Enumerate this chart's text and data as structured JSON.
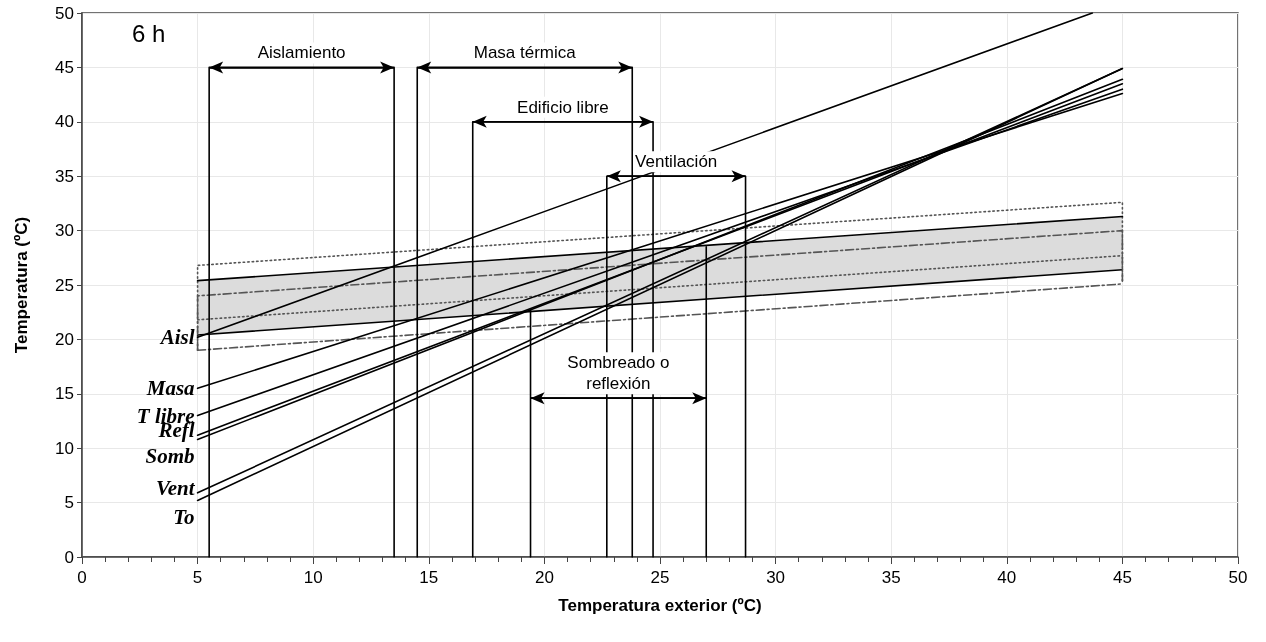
{
  "chart_data": {
    "type": "line",
    "xlabel": "Temperatura exterior (ºC)",
    "ylabel": "Temperatura (ºC)",
    "xlim": [
      0,
      50
    ],
    "xticks": [
      0,
      {
        "value": 1,
        "label": null
      },
      {
        "value": 2,
        "label": null
      },
      {
        "value": 3,
        "label": null
      },
      {
        "value": 4,
        "label": null
      },
      5,
      {
        "value": 6,
        "label": null
      },
      {
        "value": 7,
        "label": null
      },
      {
        "value": 8,
        "label": null
      },
      {
        "value": 9,
        "label": null
      },
      10,
      {
        "value": 11,
        "label": null
      },
      {
        "value": 12,
        "label": null
      },
      {
        "value": 13,
        "label": null
      },
      {
        "value": 14,
        "label": null
      },
      15,
      {
        "value": 16,
        "label": null
      },
      {
        "value": 17,
        "label": null
      },
      {
        "value": 18,
        "label": null
      },
      {
        "value": 19,
        "label": null
      },
      20,
      {
        "value": 21,
        "label": null
      },
      {
        "value": 22,
        "label": null
      },
      {
        "value": 23,
        "label": null
      },
      {
        "value": 24,
        "label": null
      },
      25,
      {
        "value": 26,
        "label": null
      },
      {
        "value": 27,
        "label": null
      },
      {
        "value": 28,
        "label": null
      },
      {
        "value": 29,
        "label": null
      },
      30,
      {
        "value": 31,
        "label": null
      },
      {
        "value": 32,
        "label": null
      },
      {
        "value": 33,
        "label": null
      },
      {
        "value": 34,
        "label": null
      },
      35,
      {
        "value": 36,
        "label": null
      },
      {
        "value": 37,
        "label": null
      },
      {
        "value": 38,
        "label": null
      },
      {
        "value": 39,
        "label": null
      },
      40,
      {
        "value": 41,
        "label": null
      },
      {
        "value": 42,
        "label": null
      },
      {
        "value": 43,
        "label": null
      },
      {
        "value": 44,
        "label": null
      },
      45,
      {
        "value": 46,
        "label": null
      },
      {
        "value": 47,
        "label": null
      },
      {
        "value": 48,
        "label": null
      },
      {
        "value": 49,
        "label": null
      },
      50
    ],
    "ylim": [
      0,
      50
    ],
    "yticks": [
      0,
      5,
      10,
      15,
      20,
      25,
      30,
      35,
      40,
      45,
      50
    ],
    "grid": true,
    "legend": false,
    "marker": "none",
    "line_style": "solid",
    "series": [
      {
        "x": [
          5,
          45
        ],
        "values": [
          21.8,
          27.7
        ],
        "lower": [
          20.4,
          26.4
        ],
        "upper": [
          25.4,
          31.3
        ],
        "color": "#555555",
        "line_style": "dotted"
      },
      {
        "x": [
          5,
          5,
          45,
          45
        ],
        "values": [
          19.0,
          26.8,
          32.6,
          25.1
        ],
        "color": "#555555",
        "line_style": "dotted"
      },
      {
        "x": [
          5,
          45
        ],
        "values": [
          25.4,
          31.3
        ],
        "color": "#000000"
      },
      {
        "x": [
          5,
          45
        ],
        "values": [
          20.4,
          26.4
        ],
        "color": "#000000"
      },
      {
        "x": [
          5,
          5,
          45,
          45
        ],
        "values": [
          19.0,
          24.0,
          30.0,
          25.1
        ],
        "color": "#555555",
        "line_style": "dashed"
      },
      {
        "x": [
          5,
          45
        ],
        "values": [
          19.0,
          25.1
        ],
        "color": "#555555",
        "line_style": "dashed"
      },
      {
        "name": "Aisl",
        "x": [
          5,
          43.7
        ],
        "values": [
          20.2,
          50
        ],
        "color": "#000000"
      },
      {
        "name": "Masa",
        "x": [
          5,
          45
        ],
        "values": [
          15.5,
          42.6
        ],
        "color": "#000000"
      },
      {
        "name": "T libre",
        "x": [
          5,
          45
        ],
        "values": [
          13.0,
          43.0
        ],
        "color": "#000000"
      },
      {
        "name": "Refl",
        "x": [
          5,
          45
        ],
        "values": [
          11.2,
          43.5
        ],
        "color": "#000000"
      },
      {
        "name": "Somb",
        "x": [
          5,
          45
        ],
        "values": [
          10.8,
          43.9
        ],
        "color": "#000000"
      },
      {
        "name": "Vent",
        "x": [
          5,
          45
        ],
        "values": [
          5.9,
          44.9
        ],
        "color": "#000000"
      },
      {
        "name": "To",
        "x": [
          5,
          45
        ],
        "values": [
          5.2,
          44.9
        ],
        "color": "#000000"
      },
      {
        "name": "Aislamiento",
        "x": [
          5.5,
          5.5,
          13.5,
          13.5
        ],
        "values": [
          0,
          45,
          45,
          0
        ],
        "color": "#000000"
      },
      {
        "name": "Masa térmica",
        "x": [
          14.5,
          14.5,
          23.8,
          23.8
        ],
        "values": [
          0,
          45,
          45,
          0
        ],
        "color": "#000000"
      },
      {
        "name": "Edificio libre",
        "x": [
          16.9,
          16.9,
          24.7,
          24.7
        ],
        "values": [
          0,
          40,
          40,
          0
        ],
        "color": "#000000"
      },
      {
        "name": "Ventilación",
        "x": [
          22.7,
          22.7,
          28.7,
          28.7
        ],
        "values": [
          0,
          35,
          35,
          0
        ],
        "color": "#000000"
      },
      {
        "name": "Sombreado o\nreflexión",
        "x": [
          19.4,
          19.4,
          19.4,
          27,
          27,
          27
        ],
        "values": [
          0,
          22.7,
          14.6,
          14.6,
          28.5,
          0
        ],
        "color": "#000000"
      }
    ],
    "annotations": [
      "6 h"
    ]
  }
}
